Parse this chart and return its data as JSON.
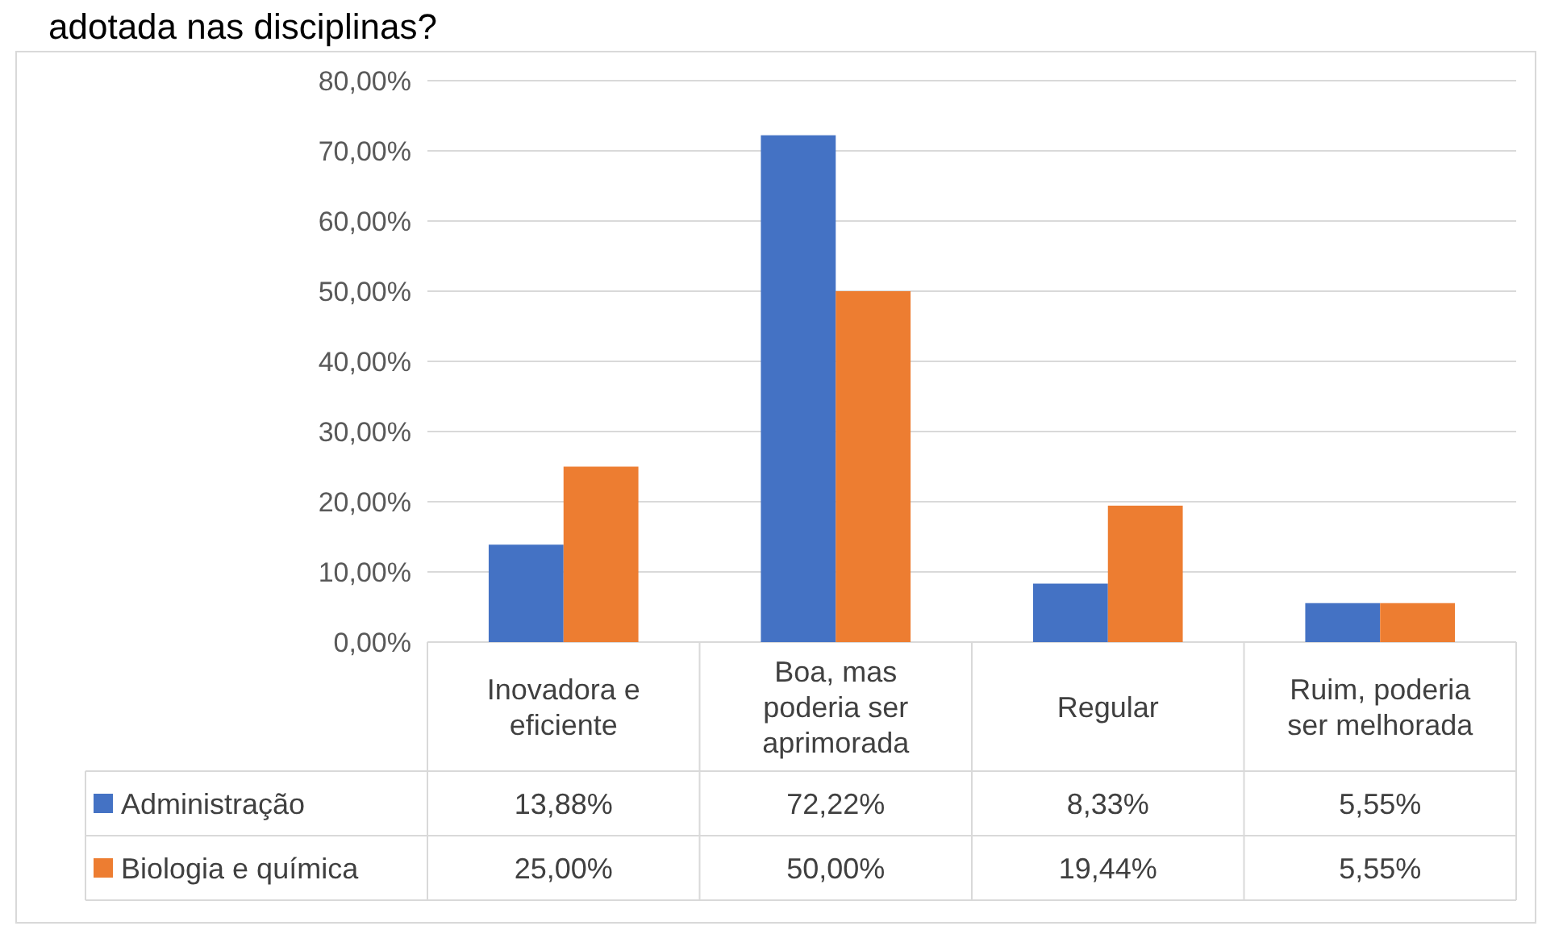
{
  "chart_data": {
    "type": "bar",
    "title": "adotada nas disciplinas?",
    "categories": [
      "Inovadora e eficiente",
      "Boa, mas poderia ser aprimorada",
      "Regular",
      "Ruim, poderia ser melhorada"
    ],
    "series": [
      {
        "name": "Administração",
        "color": "#4472c4",
        "values": [
          13.88,
          72.22,
          8.33,
          5.55
        ],
        "value_labels": [
          "13,88%",
          "72,22%",
          "8,33%",
          "5,55%"
        ]
      },
      {
        "name": "Biologia e química",
        "color": "#ed7d31",
        "values": [
          25,
          50,
          19.44,
          5.55
        ],
        "value_labels": [
          "25,00%",
          "50,00%",
          "19,44%",
          "5,55%"
        ]
      }
    ],
    "ylim": [
      0,
      80
    ],
    "yticks": [
      {
        "value": 0,
        "label": "0,00%"
      },
      {
        "value": 10,
        "label": "10,00%"
      },
      {
        "value": 20,
        "label": "20,00%"
      },
      {
        "value": 30,
        "label": "30,00%"
      },
      {
        "value": 40,
        "label": "40,00%"
      },
      {
        "value": 50,
        "label": "50,00%"
      },
      {
        "value": 60,
        "label": "60,00%"
      },
      {
        "value": 70,
        "label": "70,00%"
      },
      {
        "value": 80,
        "label": "80,00%"
      }
    ],
    "grid": "y",
    "legend": "bottom"
  }
}
